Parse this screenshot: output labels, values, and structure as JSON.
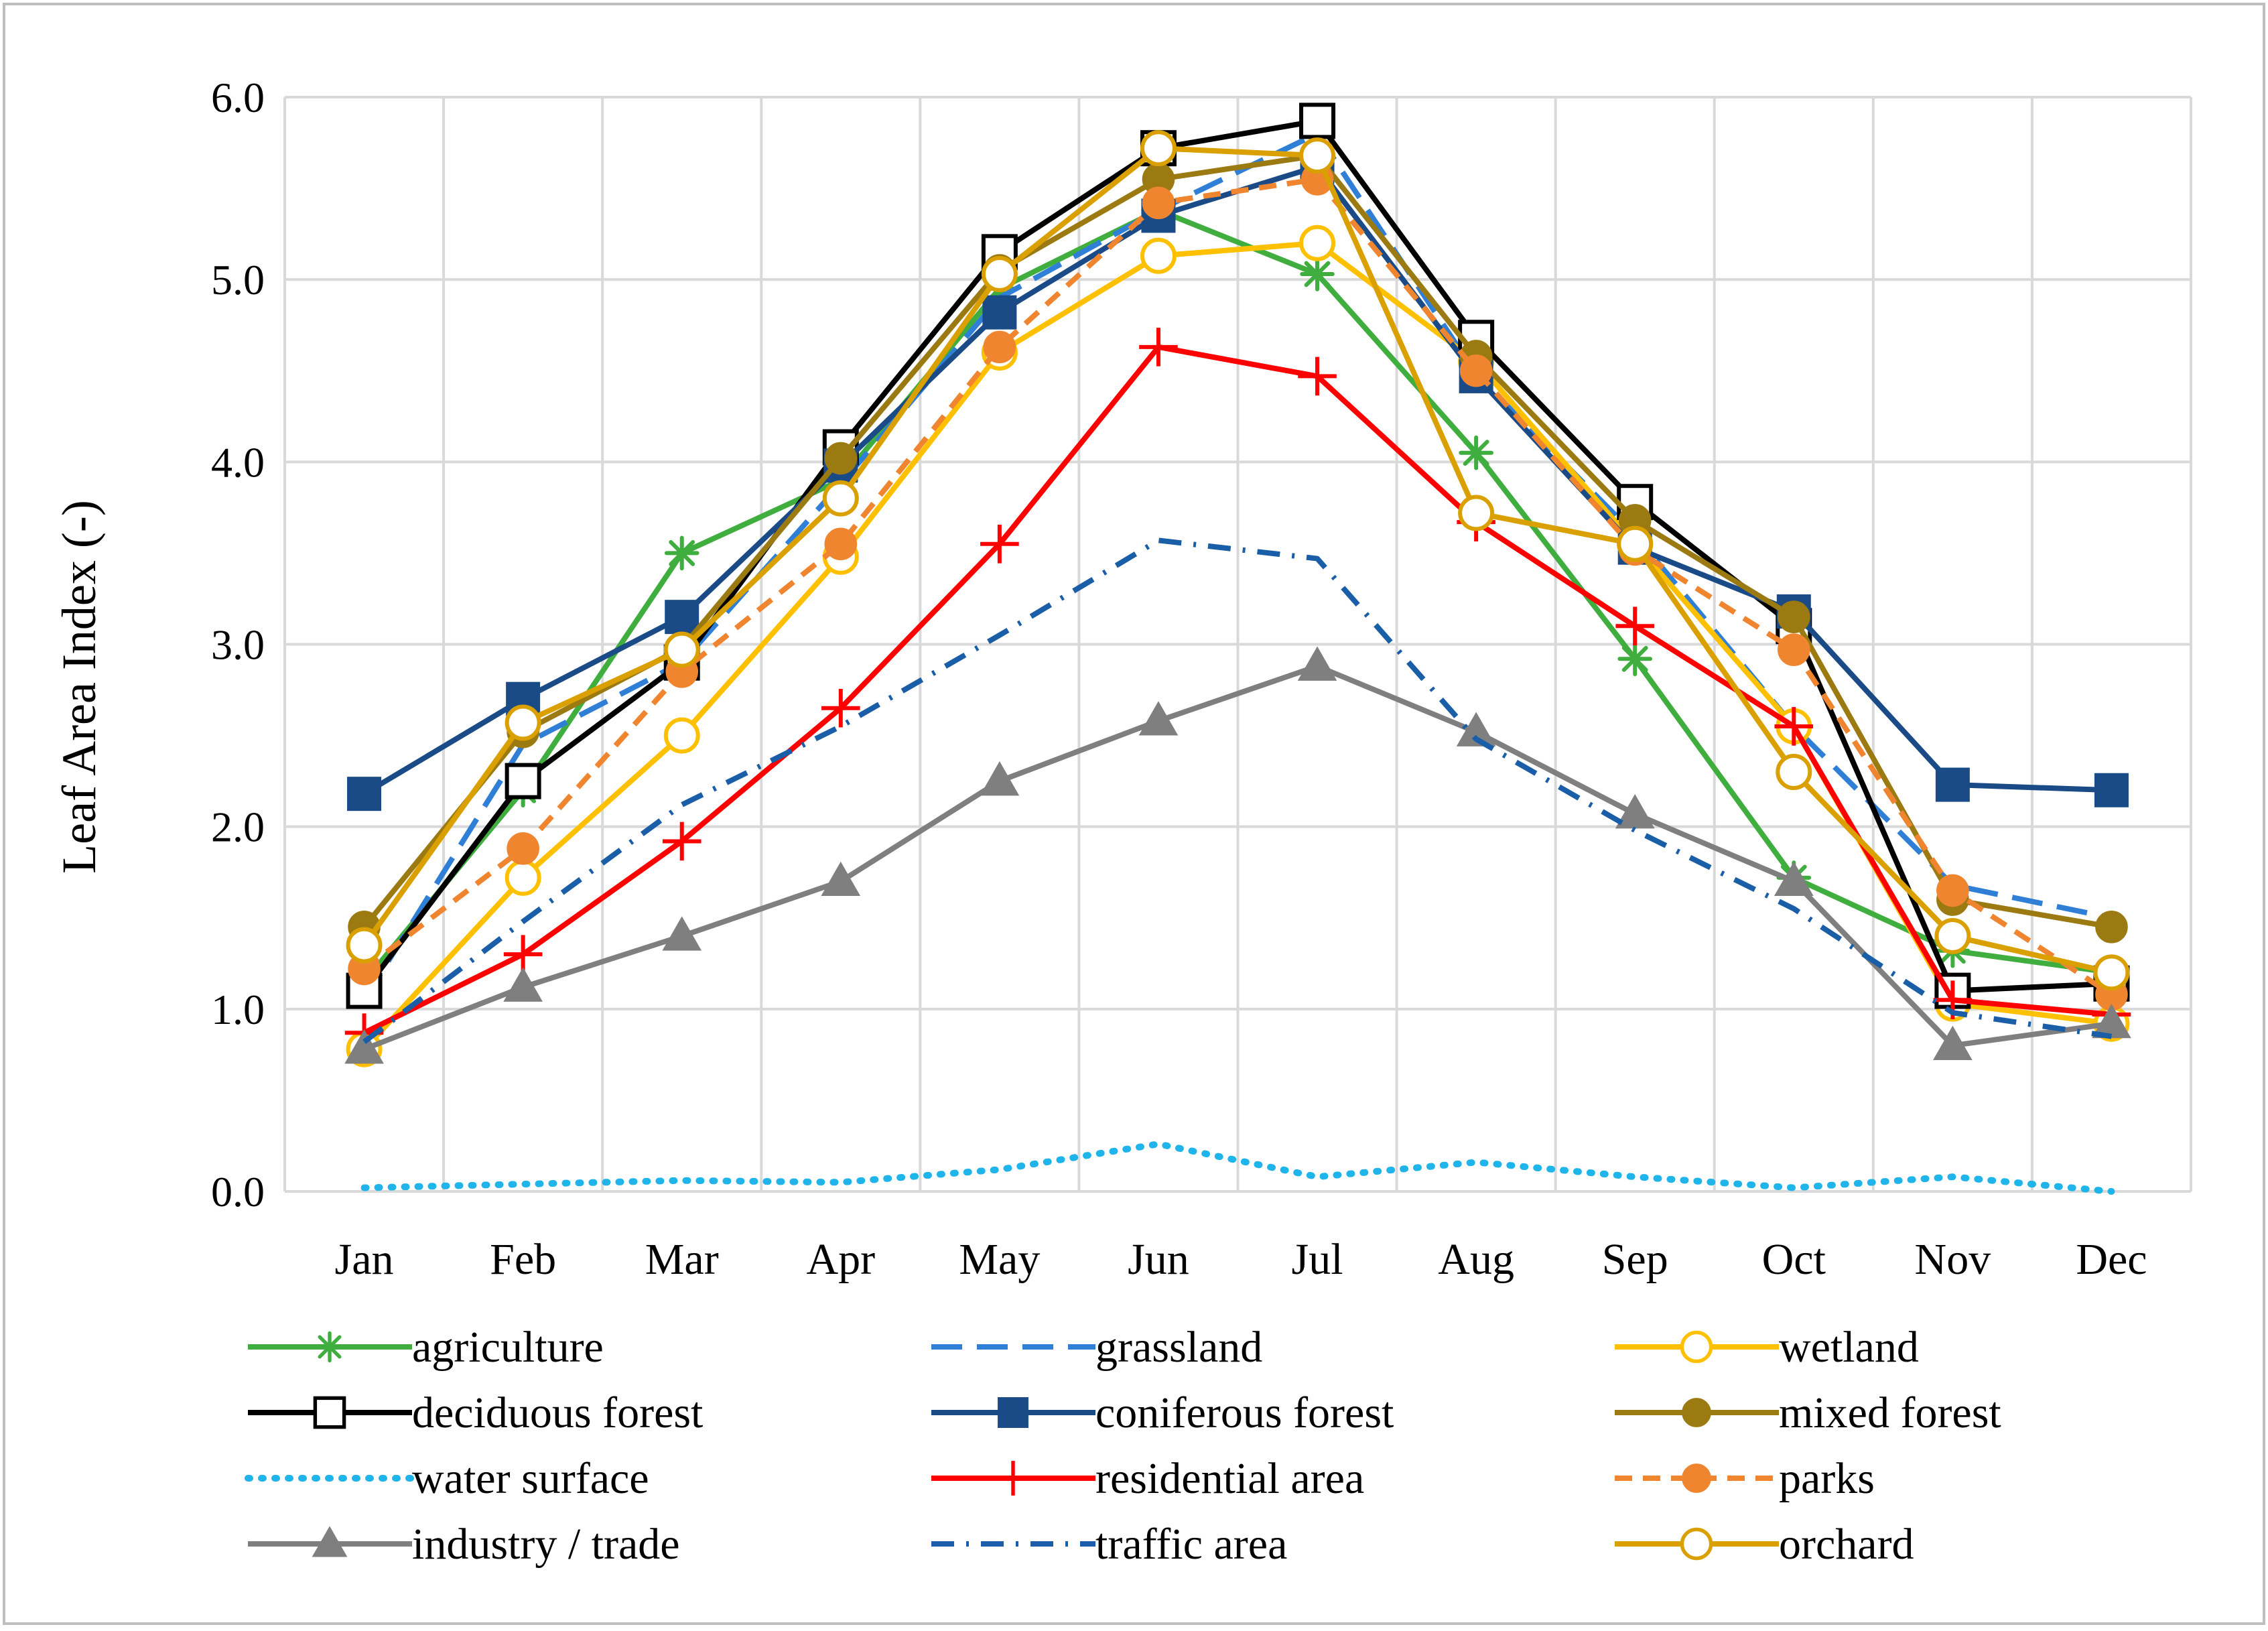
{
  "chart_data": {
    "type": "line",
    "title": "",
    "xlabel": "",
    "ylabel": "Leaf Area Index (-)",
    "ylim": [
      0,
      6
    ],
    "yticks": [
      "0.0",
      "1.0",
      "2.0",
      "3.0",
      "4.0",
      "5.0",
      "6.0"
    ],
    "categories": [
      "Jan",
      "Feb",
      "Mar",
      "Apr",
      "May",
      "Jun",
      "Jul",
      "Aug",
      "Sep",
      "Oct",
      "Nov",
      "Dec"
    ],
    "grid": true,
    "legend": "bottom",
    "series": [
      {
        "name": "agriculture",
        "color": "#3fae3f",
        "dash": "solid",
        "marker": "star",
        "values": [
          1.15,
          2.2,
          3.5,
          3.9,
          4.95,
          5.38,
          5.03,
          4.05,
          2.92,
          1.72,
          1.32,
          1.2
        ]
      },
      {
        "name": "grassland",
        "color": "#2f7fd6",
        "dash": "longdash",
        "marker": "none",
        "values": [
          1.05,
          2.45,
          2.9,
          3.88,
          4.9,
          5.38,
          5.8,
          4.48,
          3.6,
          2.55,
          1.68,
          1.5
        ]
      },
      {
        "name": "wetland",
        "color": "#ffc000",
        "dash": "solid",
        "marker": "open-circle",
        "values": [
          0.78,
          1.72,
          2.5,
          3.48,
          4.6,
          5.13,
          5.2,
          4.55,
          3.55,
          2.55,
          1.03,
          0.92
        ]
      },
      {
        "name": "deciduous forest",
        "color": "#000000",
        "dash": "solid",
        "marker": "open-square",
        "values": [
          1.1,
          2.25,
          2.9,
          4.08,
          5.15,
          5.72,
          5.87,
          4.68,
          3.78,
          3.1,
          1.1,
          1.14
        ]
      },
      {
        "name": "coniferous forest",
        "color": "#1a4b87",
        "dash": "solid",
        "marker": "filled-square",
        "values": [
          2.18,
          2.7,
          3.15,
          3.98,
          4.82,
          5.35,
          5.62,
          4.47,
          3.53,
          3.18,
          2.23,
          2.2
        ]
      },
      {
        "name": "mixed forest",
        "color": "#9c7a12",
        "dash": "solid",
        "marker": "filled-circle",
        "values": [
          1.45,
          2.52,
          2.98,
          4.02,
          5.05,
          5.55,
          5.68,
          4.58,
          3.68,
          3.15,
          1.6,
          1.45
        ]
      },
      {
        "name": "water surface",
        "color": "#1fb4ea",
        "dash": "dotted",
        "marker": "none",
        "values": [
          0.02,
          0.04,
          0.06,
          0.05,
          0.12,
          0.26,
          0.08,
          0.16,
          0.08,
          0.02,
          0.08,
          0.0
        ]
      },
      {
        "name": "residential area",
        "color": "#ff0000",
        "dash": "solid",
        "marker": "plus",
        "values": [
          0.87,
          1.3,
          1.92,
          2.65,
          3.55,
          4.63,
          4.47,
          3.67,
          3.1,
          2.55,
          1.05,
          0.97
        ]
      },
      {
        "name": "parks",
        "color": "#f08530",
        "dash": "dashed",
        "marker": "filled-circle",
        "values": [
          1.22,
          1.88,
          2.85,
          3.55,
          4.63,
          5.42,
          5.55,
          4.5,
          3.52,
          2.97,
          1.65,
          1.08
        ]
      },
      {
        "name": "industry / trade",
        "color": "#7f7f7f",
        "dash": "solid",
        "marker": "triangle",
        "values": [
          0.78,
          1.12,
          1.4,
          1.7,
          2.25,
          2.58,
          2.88,
          2.52,
          2.07,
          1.7,
          0.8,
          0.92
        ]
      },
      {
        "name": "traffic area",
        "color": "#1a5ea8",
        "dash": "dashdot",
        "marker": "none",
        "values": [
          0.82,
          1.48,
          2.12,
          2.55,
          3.05,
          3.57,
          3.47,
          2.48,
          1.98,
          1.55,
          0.98,
          0.85
        ]
      },
      {
        "name": "orchard",
        "color": "#d9a000",
        "dash": "solid",
        "marker": "open-circle",
        "values": [
          1.35,
          2.57,
          2.97,
          3.8,
          5.03,
          5.72,
          5.68,
          3.72,
          3.55,
          2.3,
          1.4,
          1.2
        ]
      }
    ]
  }
}
